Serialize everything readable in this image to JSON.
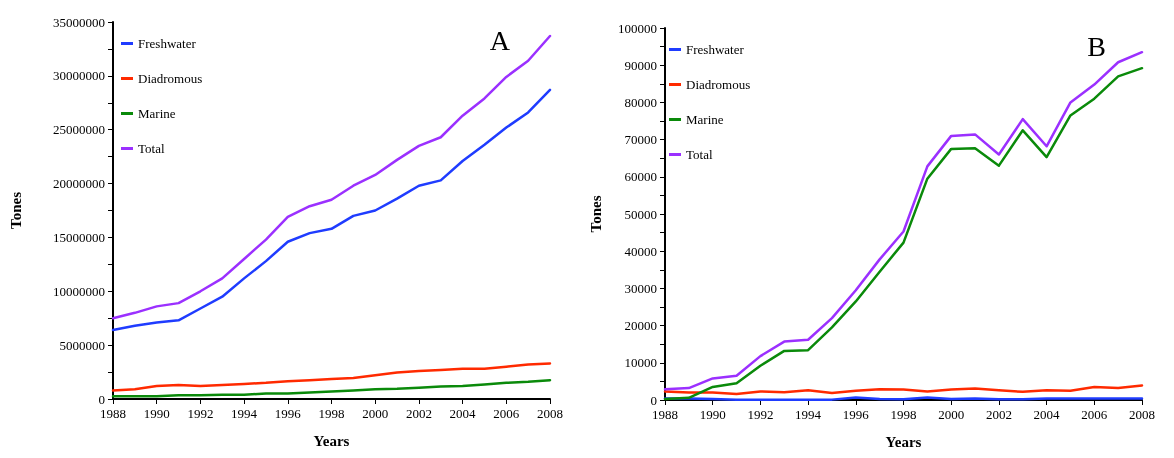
{
  "chart_data": [
    {
      "type": "line",
      "xlabel": "Years",
      "ylabel": "Tones",
      "annotations": [
        "A"
      ],
      "legend": "top left",
      "grid": false,
      "line_style": "solid",
      "marker": "none",
      "x": [
        1988,
        1989,
        1990,
        1991,
        1992,
        1993,
        1994,
        1995,
        1996,
        1997,
        1998,
        1999,
        2000,
        2001,
        2002,
        2003,
        2004,
        2005,
        2006,
        2007,
        2008
      ],
      "xlim": [
        1988,
        2008
      ],
      "xticks": [
        1988,
        1990,
        1992,
        1994,
        1996,
        1998,
        2000,
        2002,
        2004,
        2006,
        2008
      ],
      "ylim": [
        0,
        35000000
      ],
      "yticks": [
        0,
        {
          "value": 2500000,
          "label": null
        },
        5000000,
        {
          "value": 7500000,
          "label": null
        },
        10000000,
        {
          "value": 12500000,
          "label": null
        },
        15000000,
        {
          "value": 17500000,
          "label": null
        },
        20000000,
        {
          "value": 22500000,
          "label": null
        },
        25000000,
        {
          "value": 27500000,
          "label": null
        },
        30000000,
        {
          "value": 32500000,
          "label": null
        },
        35000000
      ],
      "series": [
        {
          "name": "Freshwater",
          "color": "#1f3cff",
          "values": [
            6400000,
            6800000,
            7100000,
            7300000,
            8400000,
            9500000,
            11200000,
            12800000,
            14600000,
            15400000,
            15800000,
            17000000,
            17500000,
            18600000,
            19800000,
            20300000,
            22100000,
            23600000,
            25200000,
            26600000,
            28700000
          ]
        },
        {
          "name": "Diadromous",
          "color": "#ff2a00",
          "values": [
            800000,
            900000,
            1200000,
            1300000,
            1200000,
            1300000,
            1400000,
            1500000,
            1650000,
            1750000,
            1850000,
            1950000,
            2200000,
            2450000,
            2600000,
            2700000,
            2800000,
            2800000,
            3000000,
            3200000,
            3300000
          ]
        },
        {
          "name": "Marine",
          "color": "#0a8a0a",
          "values": [
            250000,
            250000,
            250000,
            350000,
            350000,
            400000,
            400000,
            500000,
            500000,
            600000,
            700000,
            800000,
            900000,
            950000,
            1050000,
            1150000,
            1200000,
            1350000,
            1500000,
            1600000,
            1750000
          ]
        },
        {
          "name": "Total",
          "color": "#9b30ff",
          "values": [
            7500000,
            8000000,
            8600000,
            8900000,
            10000000,
            11200000,
            13000000,
            14800000,
            16900000,
            17900000,
            18500000,
            19800000,
            20800000,
            22200000,
            23500000,
            24300000,
            26300000,
            27900000,
            29900000,
            31400000,
            33700000
          ]
        }
      ]
    },
    {
      "type": "line",
      "xlabel": "Years",
      "ylabel": "Tones",
      "annotations": [
        "B"
      ],
      "legend": "top left",
      "grid": false,
      "line_style": "solid",
      "marker": "none",
      "x": [
        1988,
        1989,
        1990,
        1991,
        1992,
        1993,
        1994,
        1995,
        1996,
        1997,
        1998,
        1999,
        2000,
        2001,
        2002,
        2003,
        2004,
        2005,
        2006,
        2007,
        2008
      ],
      "xlim": [
        1988,
        2008
      ],
      "xticks": [
        1988,
        1990,
        1992,
        1994,
        1996,
        1998,
        2000,
        2002,
        2004,
        2006,
        2008
      ],
      "ylim": [
        0,
        100000
      ],
      "yticks": [
        0,
        {
          "value": 5000,
          "label": null
        },
        10000,
        {
          "value": 15000,
          "label": null
        },
        20000,
        {
          "value": 25000,
          "label": null
        },
        30000,
        {
          "value": 35000,
          "label": null
        },
        40000,
        {
          "value": 45000,
          "label": null
        },
        50000,
        {
          "value": 55000,
          "label": null
        },
        60000,
        {
          "value": 65000,
          "label": null
        },
        70000,
        {
          "value": 75000,
          "label": null
        },
        80000,
        {
          "value": 85000,
          "label": null
        },
        90000,
        {
          "value": 95000,
          "label": null
        },
        100000
      ],
      "series": [
        {
          "name": "Freshwater",
          "color": "#1f3cff",
          "values": [
            400,
            400,
            300,
            100,
            100,
            100,
            100,
            100,
            700,
            300,
            200,
            700,
            300,
            400,
            200,
            200,
            400,
            400,
            400,
            400,
            400
          ]
        },
        {
          "name": "Diadromous",
          "color": "#ff2a00",
          "values": [
            2300,
            2000,
            2000,
            1600,
            2300,
            2100,
            2600,
            1900,
            2500,
            2900,
            2800,
            2300,
            2800,
            3100,
            2600,
            2200,
            2600,
            2500,
            3500,
            3200,
            3900
          ]
        },
        {
          "name": "Marine",
          "color": "#0a8a0a",
          "values": [
            300,
            600,
            3500,
            4500,
            9200,
            13200,
            13400,
            19500,
            26500,
            34500,
            42300,
            59500,
            67500,
            67700,
            63000,
            72500,
            65300,
            76500,
            81000,
            87000,
            89200
          ]
        },
        {
          "name": "Total",
          "color": "#9b30ff",
          "values": [
            2900,
            3200,
            5800,
            6500,
            11800,
            15700,
            16200,
            22000,
            29500,
            37800,
            45300,
            62800,
            71000,
            71400,
            66000,
            75500,
            68200,
            80000,
            84800,
            90800,
            93500
          ]
        }
      ]
    }
  ]
}
